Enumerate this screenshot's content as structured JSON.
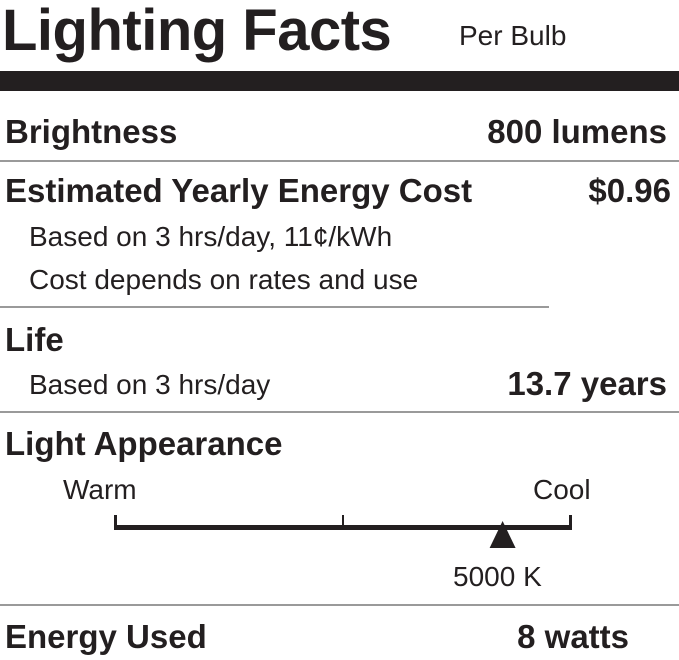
{
  "title": "Lighting Facts",
  "subtitle": "Per Bulb",
  "brightness": {
    "label": "Brightness",
    "value": "800 lumens"
  },
  "energy_cost": {
    "label": "Estimated Yearly Energy Cost",
    "value": "$0.96",
    "note1": "Based on 3 hrs/day, 11¢/kWh",
    "note2": "Cost depends on rates and use"
  },
  "life": {
    "label": "Life",
    "note": "Based on 3 hrs/day",
    "value": "13.7 years"
  },
  "light_appearance": {
    "label": "Light Appearance",
    "warm_label": "Warm",
    "cool_label": "Cool",
    "value": "5000 K",
    "marker_fraction": 0.85
  },
  "energy_used": {
    "label": "Energy Used",
    "value": "8 watts"
  },
  "colors": {
    "text": "#231f20",
    "rule": "#9a9a9a"
  }
}
